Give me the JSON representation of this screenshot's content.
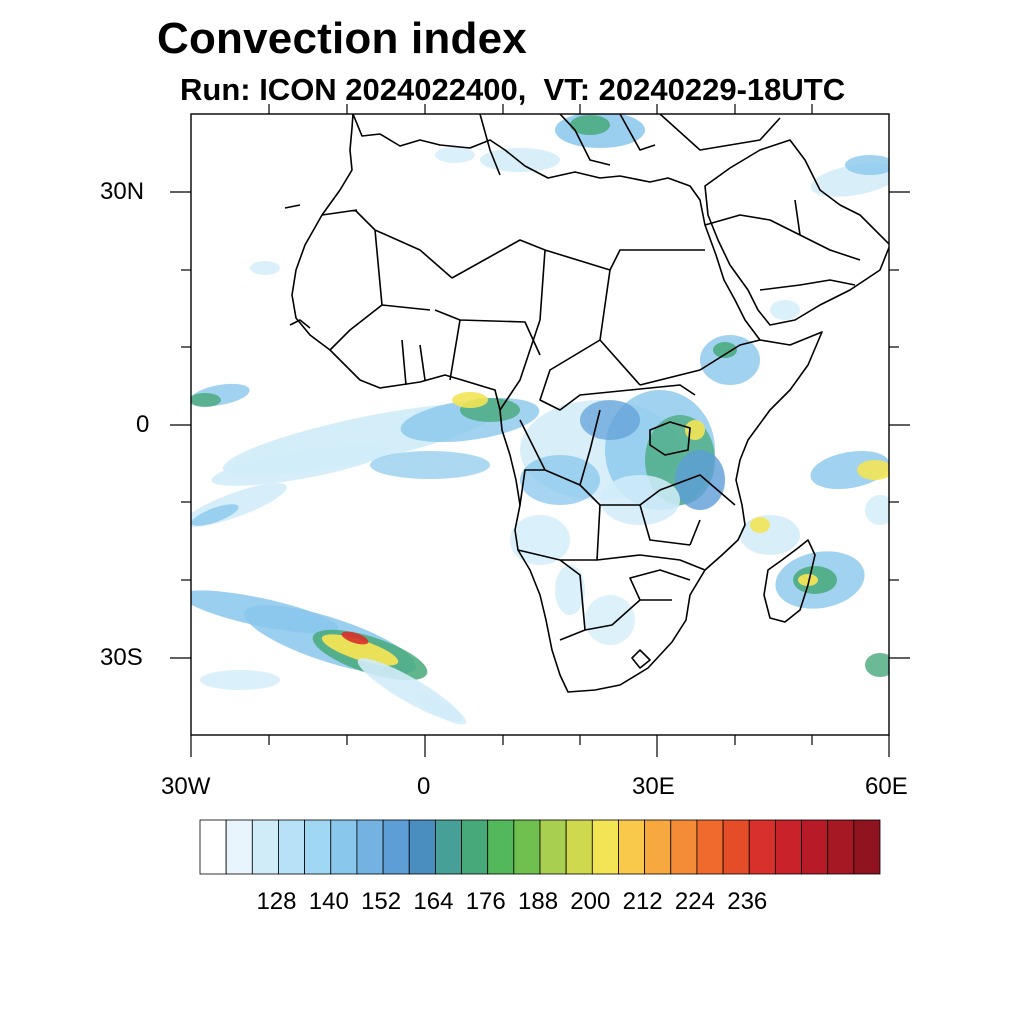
{
  "title": "Convection index",
  "subtitle": "Run: ICON 2024022400,  VT: 20240229-18UTC",
  "map": {
    "lat_ticks": [
      "30N",
      "0",
      "30S"
    ],
    "lon_ticks": [
      "30W",
      "0",
      "30E",
      "60E"
    ]
  },
  "colorbar": {
    "labels": [
      "128",
      "140",
      "152",
      "164",
      "176",
      "188",
      "200",
      "212",
      "224",
      "236"
    ],
    "colors": [
      "#ffffff",
      "#e8f5fc",
      "#d1ecf9",
      "#b6e1f6",
      "#a0d8f3",
      "#8ac7ec",
      "#74b2e2",
      "#5e9ed7",
      "#4a8ec0",
      "#46a098",
      "#47a97a",
      "#52b85b",
      "#6fc04e",
      "#a8cf4f",
      "#cfd94e",
      "#f3e455",
      "#f8c94b",
      "#f7a93f",
      "#f48b36",
      "#ef6a2c",
      "#e44d28",
      "#d8302a",
      "#c9222a",
      "#b71b27",
      "#a51824",
      "#8f1420"
    ]
  },
  "field_colors": {
    "light": "#d1ecf9",
    "blue": "#8ac7ec",
    "deep": "#5e9ed7",
    "green": "#47a97a",
    "yellow": "#f3e455",
    "red": "#d8302a"
  }
}
